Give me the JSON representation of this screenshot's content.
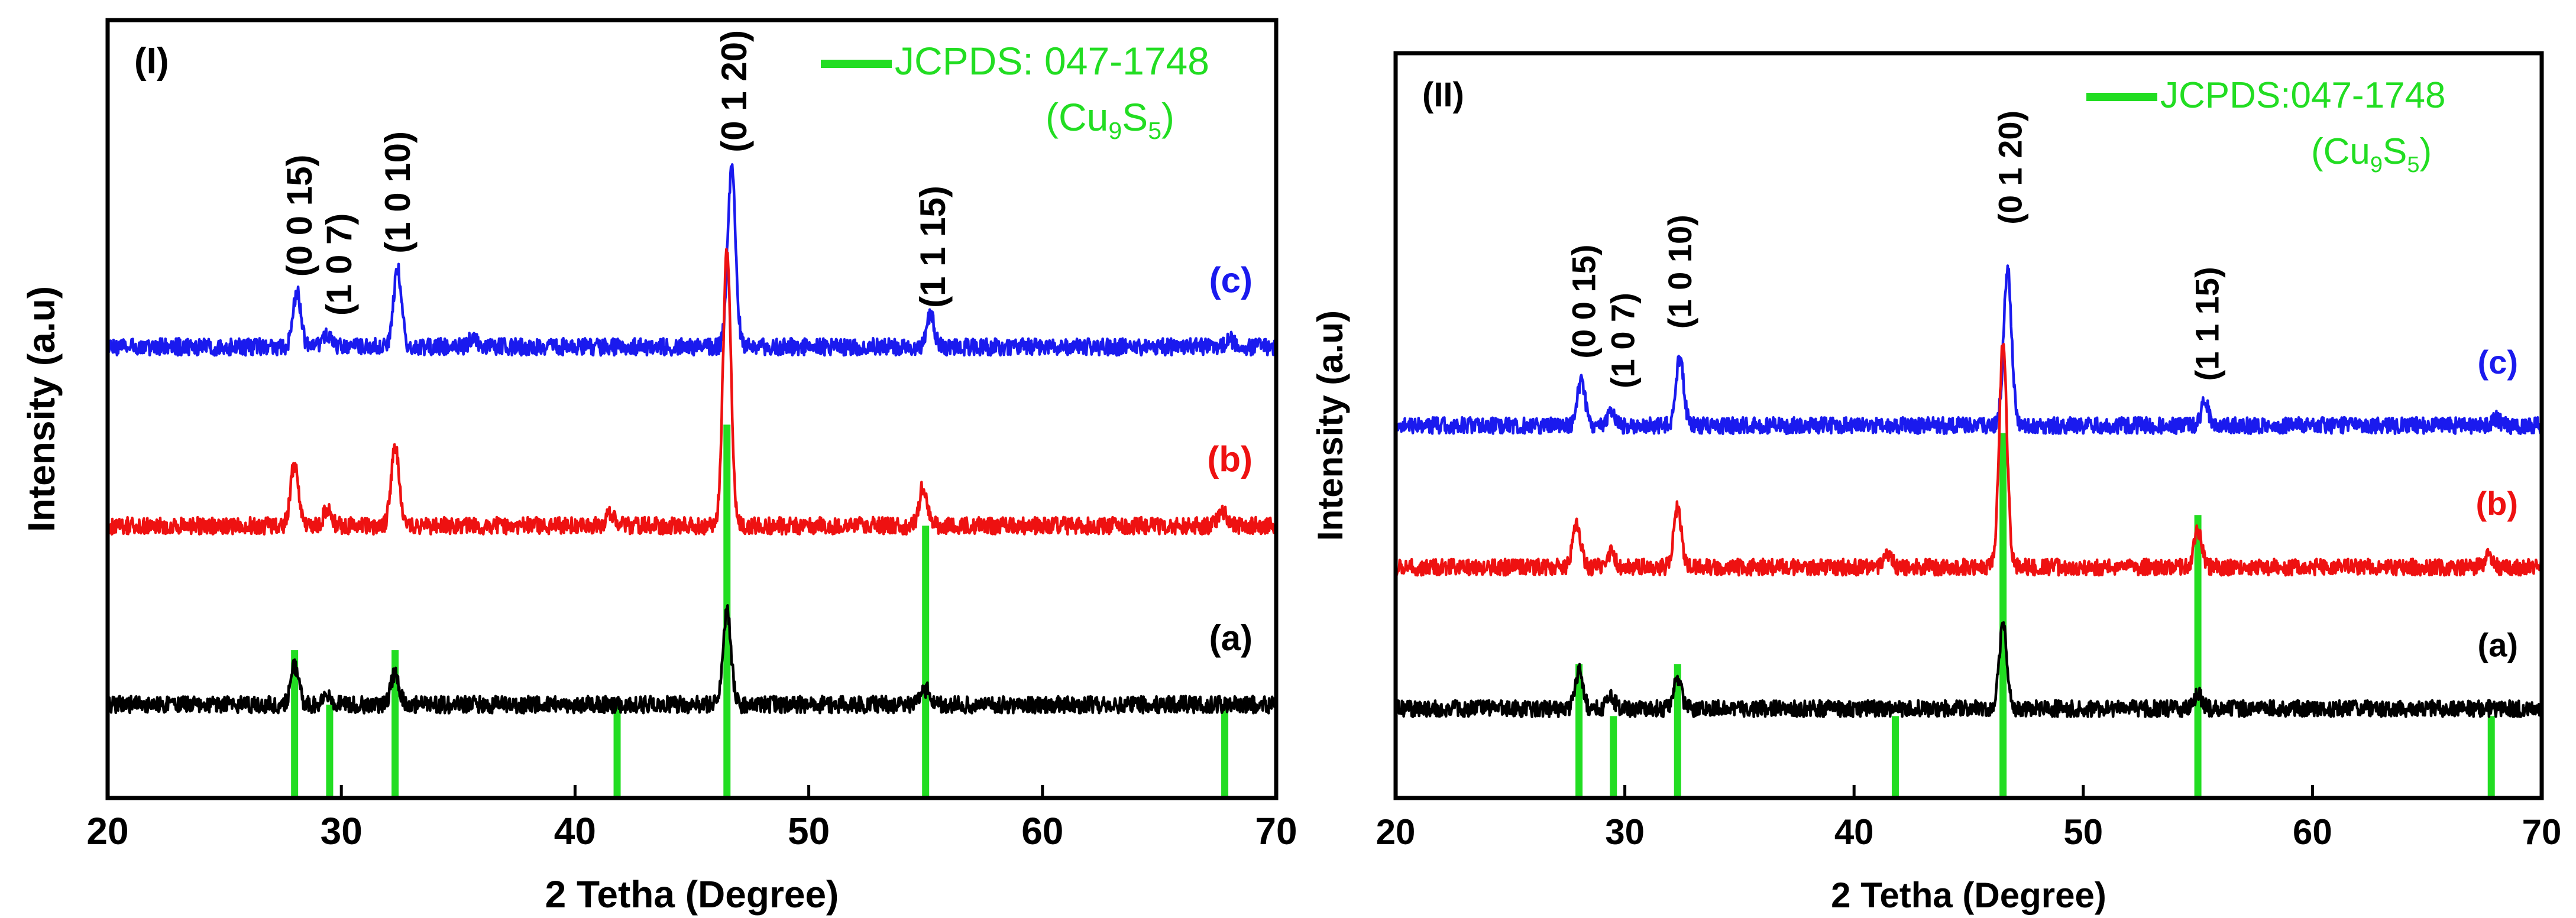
{
  "chart_data": [
    {
      "type": "line",
      "panel_label": "(I)",
      "xlabel": "2 Tetha (Degree)",
      "ylabel": "Intensity (a.u)",
      "xlim": [
        20,
        70
      ],
      "xticks": [
        20,
        30,
        40,
        50,
        60,
        70
      ],
      "y_unit": "offset intensity (a.u)",
      "ylim": [
        0,
        100
      ],
      "legend": {
        "position": "top-right",
        "line1": "JCPDS: 047-1748",
        "formula": "(Cu9S5)",
        "formula_base": "(Cu",
        "formula_sub1": "9",
        "formula_mid": "S",
        "formula_sub2": "5",
        "formula_end": ")",
        "color": "#22dd22"
      },
      "series": [
        {
          "name": "(c)",
          "color": "#1a1aee",
          "baseline": 58,
          "peaks": [
            [
              28.1,
              7
            ],
            [
              29.4,
              1.5
            ],
            [
              32.4,
              10
            ],
            [
              35.6,
              1
            ],
            [
              46.7,
              23
            ],
            [
              55.2,
              4
            ],
            [
              68.0,
              1
            ]
          ]
        },
        {
          "name": "(b)",
          "color": "#ee1111",
          "baseline": 35,
          "peaks": [
            [
              28.0,
              8
            ],
            [
              29.4,
              2
            ],
            [
              32.3,
              10
            ],
            [
              41.5,
              1.5
            ],
            [
              46.5,
              35
            ],
            [
              54.9,
              5
            ],
            [
              67.7,
              2
            ]
          ]
        },
        {
          "name": "(a)",
          "color": "#000000",
          "baseline": 12,
          "peaks": [
            [
              28.0,
              5
            ],
            [
              29.4,
              1.5
            ],
            [
              32.3,
              4
            ],
            [
              46.5,
              12
            ],
            [
              55.0,
              2
            ]
          ]
        }
      ],
      "reference": {
        "name": "JCPDS: 047-1748",
        "color": "#22dd22",
        "lines": [
          [
            28.0,
            19
          ],
          [
            29.5,
            12
          ],
          [
            32.3,
            19
          ],
          [
            41.8,
            12
          ],
          [
            46.5,
            48
          ],
          [
            55.0,
            35
          ],
          [
            67.8,
            12
          ]
        ]
      },
      "annotations": [
        {
          "text": "(0 0 15)",
          "x": 28.2,
          "y": 67
        },
        {
          "text": "(1 0 7)",
          "x": 29.9,
          "y": 62
        },
        {
          "text": "(1 0 10)",
          "x": 32.4,
          "y": 70
        },
        {
          "text": "(0 1 20)",
          "x": 46.8,
          "y": 83
        },
        {
          "text": "(1 1 15)",
          "x": 55.3,
          "y": 63
        }
      ]
    },
    {
      "type": "line",
      "panel_label": "(II)",
      "xlabel": "2 Tetha (Degree)",
      "ylabel": "Intensity (a.u)",
      "xlim": [
        20,
        70
      ],
      "xticks": [
        20,
        30,
        40,
        50,
        60,
        70
      ],
      "y_unit": "offset intensity (a.u)",
      "ylim": [
        0,
        100
      ],
      "legend": {
        "position": "top-right",
        "line1": "JCPDS:047-1748",
        "formula": "(Cu9S5)",
        "formula_base": "(Cu",
        "formula_sub1": "9",
        "formula_mid": "S",
        "formula_sub2": "5",
        "formula_end": ")",
        "color": "#22dd22"
      },
      "series": [
        {
          "name": "(c)",
          "color": "#1a1aee",
          "baseline": 50,
          "peaks": [
            [
              28.1,
              6
            ],
            [
              29.4,
              1.5
            ],
            [
              32.4,
              9
            ],
            [
              46.7,
              21
            ],
            [
              55.3,
              3
            ],
            [
              68.0,
              1
            ]
          ]
        },
        {
          "name": "(b)",
          "color": "#ee1111",
          "baseline": 31,
          "peaks": [
            [
              27.9,
              6
            ],
            [
              29.4,
              2
            ],
            [
              32.3,
              8
            ],
            [
              41.5,
              1.5
            ],
            [
              46.5,
              30
            ],
            [
              55.0,
              5
            ],
            [
              67.7,
              1.5
            ]
          ]
        },
        {
          "name": "(a)",
          "color": "#000000",
          "baseline": 12,
          "peaks": [
            [
              28.0,
              5
            ],
            [
              29.4,
              1.5
            ],
            [
              32.3,
              4
            ],
            [
              46.5,
              11
            ],
            [
              55.0,
              2
            ]
          ]
        }
      ],
      "reference": {
        "name": "JCPDS:047-1748",
        "color": "#22dd22",
        "lines": [
          [
            28.0,
            18
          ],
          [
            29.5,
            11
          ],
          [
            32.3,
            18
          ],
          [
            41.8,
            11
          ],
          [
            46.5,
            49
          ],
          [
            55.0,
            38
          ],
          [
            67.8,
            11
          ]
        ]
      },
      "annotations": [
        {
          "text": "(0 0 15)",
          "x": 28.2,
          "y": 59
        },
        {
          "text": "(1 0 7)",
          "x": 29.9,
          "y": 55
        },
        {
          "text": "(1 0 10)",
          "x": 32.4,
          "y": 63
        },
        {
          "text": "(0 1 20)",
          "x": 46.8,
          "y": 77
        },
        {
          "text": "(1 1 15)",
          "x": 55.4,
          "y": 56
        }
      ]
    }
  ]
}
